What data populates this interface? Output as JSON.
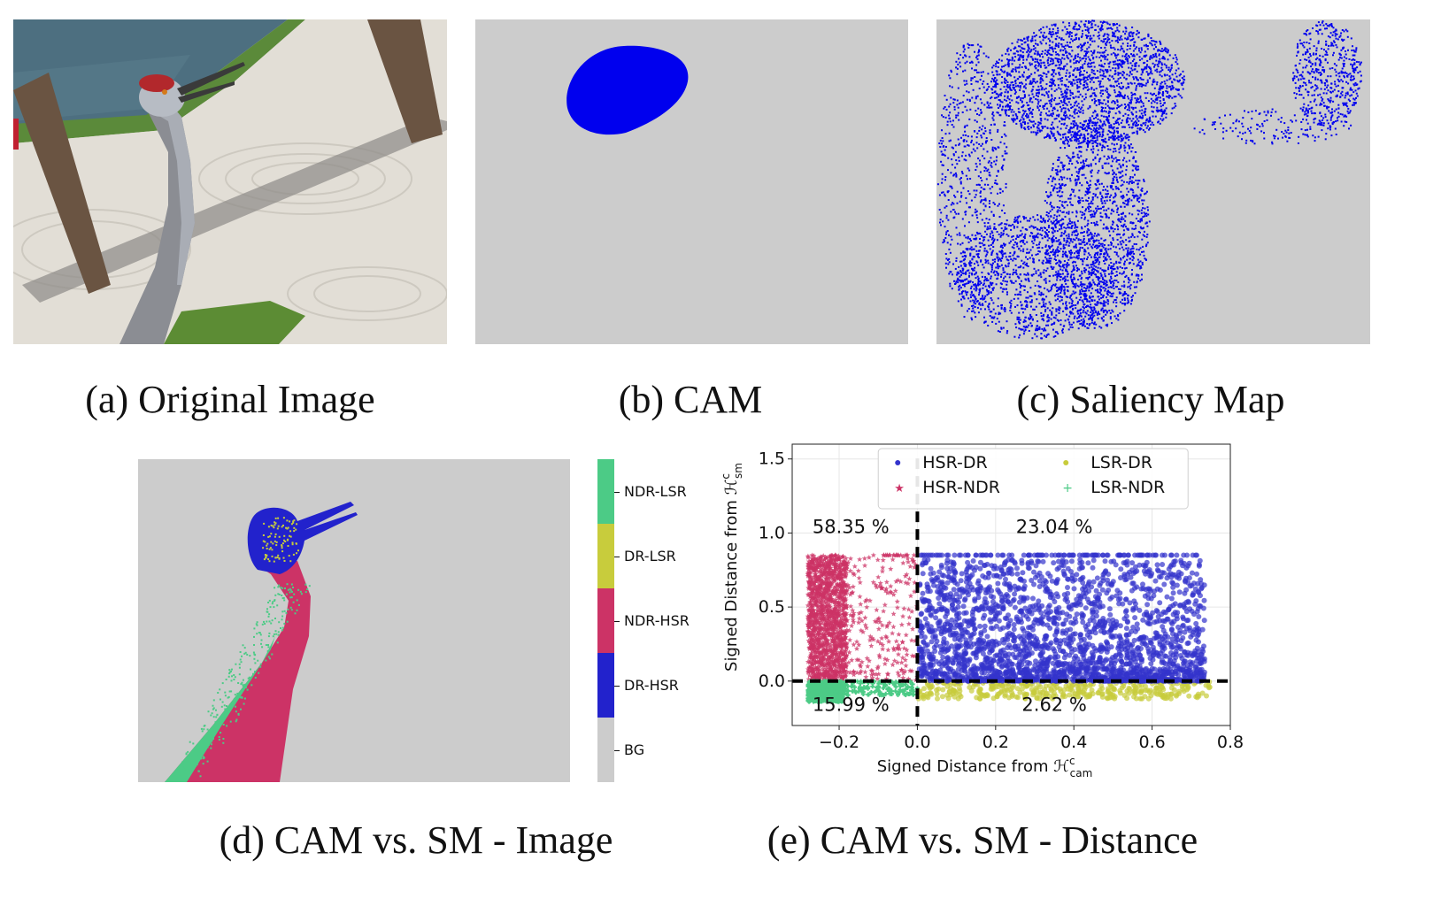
{
  "captions": {
    "a": "(a) Original Image",
    "b": "(b) CAM",
    "c": "(c) Saliency Map",
    "d": "(d) CAM vs. SM - Image",
    "e": "(e) CAM vs. SM - Distance"
  },
  "colorbar": {
    "labels": [
      "NDR-LSR",
      "DR-LSR",
      "NDR-HSR",
      "DR-HSR",
      "BG"
    ],
    "colors": [
      "#4ccb86",
      "#c8cc3c",
      "#cc3366",
      "#2222cc",
      "#cccccc"
    ]
  },
  "colors": {
    "gray_bg": "#cccccc",
    "cam_blue": "#0000ee",
    "hsr_dr": "#3333cc",
    "hsr_ndr": "#cc3366",
    "lsr_dr": "#c8cc3c",
    "lsr_ndr": "#4ccb86"
  },
  "chart_data": {
    "type": "scatter",
    "xlabel": "Signed Distance from ℋ",
    "xlabel_sub": "cam",
    "xlabel_sup": "c",
    "ylabel": "Signed Distance from ℋ",
    "ylabel_sub": "sm",
    "ylabel_sup": "c",
    "xlim": [
      -0.32,
      0.8
    ],
    "ylim": [
      -0.3,
      1.6
    ],
    "xticks": [
      "−0.2",
      "0.0",
      "0.2",
      "0.4",
      "0.6",
      "0.8"
    ],
    "xtick_values": [
      -0.2,
      0.0,
      0.2,
      0.4,
      0.6,
      0.8
    ],
    "yticks": [
      "0.0",
      "0.5",
      "1.0",
      "1.5"
    ],
    "ytick_values": [
      0.0,
      0.5,
      1.0,
      1.5
    ],
    "legend": [
      {
        "name": "HSR-DR",
        "marker": "circle",
        "color": "#3333cc"
      },
      {
        "name": "LSR-DR",
        "marker": "circle",
        "color": "#c8cc3c"
      },
      {
        "name": "HSR-NDR",
        "marker": "star",
        "color": "#cc3366"
      },
      {
        "name": "LSR-NDR",
        "marker": "plus",
        "color": "#4ccb86"
      }
    ],
    "legend_position": "top-center",
    "quadrant_percentages": [
      {
        "label": "58.35 %",
        "x": -0.15,
        "y": 1.0
      },
      {
        "label": "23.04 %",
        "x": 0.35,
        "y": 1.0
      },
      {
        "label": "15.99 %",
        "x": -0.15,
        "y": -0.2
      },
      {
        "label": "2.62 %",
        "x": 0.35,
        "y": -0.2
      }
    ],
    "series": [
      {
        "name": "HSR-DR",
        "x_range": [
          0.0,
          0.75
        ],
        "y_range": [
          0.0,
          0.85
        ],
        "density": "high near y=0, sparse at top, cap at y=0.85"
      },
      {
        "name": "HSR-NDR",
        "x_range": [
          -0.28,
          0.0
        ],
        "y_range": [
          0.0,
          0.85
        ],
        "density": "dense block for x in [-0.28,-0.18]"
      },
      {
        "name": "LSR-DR",
        "x_range": [
          0.0,
          0.75
        ],
        "y_range": [
          -0.12,
          0.0
        ]
      },
      {
        "name": "LSR-NDR",
        "x_range": [
          -0.28,
          0.0
        ],
        "y_range": [
          -0.14,
          0.0
        ]
      }
    ],
    "reference_lines": [
      {
        "axis": "x",
        "value": 0.0,
        "style": "dashed"
      },
      {
        "axis": "y",
        "value": 0.0,
        "style": "dashed"
      }
    ],
    "grid": true
  }
}
